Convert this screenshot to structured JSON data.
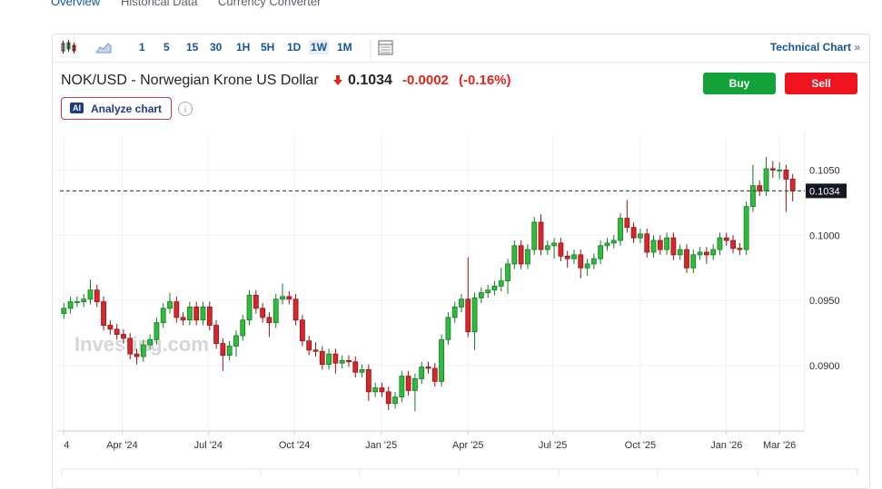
{
  "tabs": [
    "Overview",
    "Historical Data",
    "Currency Converter"
  ],
  "toolbar": {
    "intervals": [
      "1",
      "5",
      "15",
      "30",
      "1H",
      "5H",
      "1D",
      "1W",
      "1M"
    ],
    "selected": "1W",
    "technical_chart": "Technical Chart"
  },
  "quote": {
    "name": "NOK/USD - Norwegian Krone US Dollar",
    "price": "0.1034",
    "change": "-0.0002",
    "change_percent": "(-0.16%)",
    "buy": "Buy",
    "sell": "Sell"
  },
  "analyze": {
    "badge": "AI",
    "label": "Analyze chart"
  },
  "watermark": "Investing.com",
  "chart_data": {
    "type": "candlestick",
    "up_color": "#2ebd3a",
    "down_color": "#d9262b",
    "xlim": [
      -1,
      111
    ],
    "ylim": [
      0.085,
      0.1076
    ],
    "xticks": [
      {
        "value": 0,
        "label": "4"
      },
      {
        "value": 8.8,
        "label": "Apr '24"
      },
      {
        "value": 21.8,
        "label": "Jul '24"
      },
      {
        "value": 34.8,
        "label": "Oct '24"
      },
      {
        "value": 47.9,
        "label": "Jan '25"
      },
      {
        "value": 61,
        "label": "Apr '25"
      },
      {
        "value": 73.8,
        "label": "Jul '25"
      },
      {
        "value": 87,
        "label": "Oct '25"
      },
      {
        "value": 100,
        "label": "Jan '26"
      },
      {
        "value": 108,
        "label": "Mar '26"
      }
    ],
    "yticks": [
      {
        "value": 0.09,
        "label": "0.0900"
      },
      {
        "value": 0.095,
        "label": "0.0950"
      },
      {
        "value": 0.1,
        "label": "0.1000"
      },
      {
        "value": 0.105,
        "label": "0.1050"
      }
    ],
    "grid": true,
    "last_price": 0.1034,
    "ohlc": [
      [
        0.094,
        0.0948,
        0.0936,
        0.0944
      ],
      [
        0.0944,
        0.0953,
        0.094,
        0.0949
      ],
      [
        0.0949,
        0.0953,
        0.0945,
        0.0949
      ],
      [
        0.0949,
        0.0955,
        0.0945,
        0.0951
      ],
      [
        0.0951,
        0.0966,
        0.0947,
        0.0958
      ],
      [
        0.0958,
        0.0962,
        0.0945,
        0.0949
      ],
      [
        0.0949,
        0.0953,
        0.0927,
        0.0931
      ],
      [
        0.0931,
        0.0935,
        0.0924,
        0.0928
      ],
      [
        0.0928,
        0.0932,
        0.092,
        0.0924
      ],
      [
        0.0924,
        0.0928,
        0.0917,
        0.0921
      ],
      [
        0.0921,
        0.0925,
        0.0905,
        0.0909
      ],
      [
        0.0909,
        0.0913,
        0.0901,
        0.0907
      ],
      [
        0.0907,
        0.092,
        0.0903,
        0.0916
      ],
      [
        0.0916,
        0.0924,
        0.0912,
        0.092
      ],
      [
        0.092,
        0.0937,
        0.0916,
        0.0933
      ],
      [
        0.0933,
        0.0948,
        0.0929,
        0.0944
      ],
      [
        0.0944,
        0.0956,
        0.094,
        0.0949
      ],
      [
        0.0949,
        0.0953,
        0.0933,
        0.0937
      ],
      [
        0.0937,
        0.0941,
        0.0931,
        0.0935
      ],
      [
        0.0935,
        0.0949,
        0.0931,
        0.0945
      ],
      [
        0.0945,
        0.0949,
        0.0931,
        0.0935
      ],
      [
        0.0935,
        0.0949,
        0.0931,
        0.0945
      ],
      [
        0.0945,
        0.0949,
        0.0927,
        0.0931
      ],
      [
        0.0931,
        0.0935,
        0.0913,
        0.0917
      ],
      [
        0.0917,
        0.0921,
        0.0896,
        0.0908
      ],
      [
        0.0908,
        0.0919,
        0.0904,
        0.0915
      ],
      [
        0.0915,
        0.0927,
        0.0907,
        0.0923
      ],
      [
        0.0923,
        0.0939,
        0.0919,
        0.0935
      ],
      [
        0.0935,
        0.0958,
        0.0931,
        0.0954
      ],
      [
        0.0954,
        0.0958,
        0.094,
        0.0944
      ],
      [
        0.0944,
        0.0948,
        0.0933,
        0.0937
      ],
      [
        0.0937,
        0.0941,
        0.0922,
        0.0933
      ],
      [
        0.0933,
        0.0955,
        0.0929,
        0.0951
      ],
      [
        0.0951,
        0.0963,
        0.0947,
        0.0953
      ],
      [
        0.0953,
        0.0957,
        0.0947,
        0.0951
      ],
      [
        0.0951,
        0.0955,
        0.0931,
        0.0935
      ],
      [
        0.0935,
        0.0939,
        0.0915,
        0.0919
      ],
      [
        0.0919,
        0.0923,
        0.0908,
        0.0912
      ],
      [
        0.0912,
        0.0918,
        0.0907,
        0.0911
      ],
      [
        0.0911,
        0.0915,
        0.0897,
        0.0901
      ],
      [
        0.0901,
        0.0913,
        0.0897,
        0.0909
      ],
      [
        0.0909,
        0.0913,
        0.0894,
        0.0902
      ],
      [
        0.0902,
        0.0908,
        0.0898,
        0.0904
      ],
      [
        0.0904,
        0.0908,
        0.0899,
        0.0903
      ],
      [
        0.0903,
        0.0907,
        0.0891,
        0.0895
      ],
      [
        0.0895,
        0.0901,
        0.0891,
        0.0897
      ],
      [
        0.0897,
        0.0901,
        0.0873,
        0.088
      ],
      [
        0.088,
        0.0887,
        0.0876,
        0.0883
      ],
      [
        0.0883,
        0.0887,
        0.0876,
        0.088
      ],
      [
        0.088,
        0.0884,
        0.0866,
        0.0871
      ],
      [
        0.0871,
        0.088,
        0.0867,
        0.0876
      ],
      [
        0.0876,
        0.0896,
        0.0872,
        0.0892
      ],
      [
        0.0892,
        0.0896,
        0.0877,
        0.0881
      ],
      [
        0.0881,
        0.0894,
        0.0865,
        0.089
      ],
      [
        0.089,
        0.0903,
        0.0886,
        0.0899
      ],
      [
        0.0899,
        0.0903,
        0.0894,
        0.0898
      ],
      [
        0.0898,
        0.0902,
        0.0884,
        0.0888
      ],
      [
        0.0888,
        0.0924,
        0.0884,
        0.092
      ],
      [
        0.092,
        0.0941,
        0.0916,
        0.0937
      ],
      [
        0.0937,
        0.0949,
        0.0933,
        0.0945
      ],
      [
        0.0945,
        0.0955,
        0.0941,
        0.0951
      ],
      [
        0.0951,
        0.0983,
        0.0922,
        0.0926
      ],
      [
        0.0926,
        0.0956,
        0.0912,
        0.0952
      ],
      [
        0.0952,
        0.096,
        0.0948,
        0.0956
      ],
      [
        0.0956,
        0.0962,
        0.0952,
        0.0958
      ],
      [
        0.0958,
        0.0965,
        0.0954,
        0.0961
      ],
      [
        0.0961,
        0.0975,
        0.0957,
        0.0965
      ],
      [
        0.0965,
        0.0982,
        0.0955,
        0.0978
      ],
      [
        0.0978,
        0.0996,
        0.0974,
        0.0992
      ],
      [
        0.0992,
        0.0996,
        0.0974,
        0.0978
      ],
      [
        0.0978,
        0.0993,
        0.0974,
        0.0989
      ],
      [
        0.0989,
        0.1014,
        0.0985,
        0.101
      ],
      [
        0.101,
        0.1016,
        0.0985,
        0.0989
      ],
      [
        0.0989,
        0.0996,
        0.0985,
        0.0992
      ],
      [
        0.0992,
        0.0998,
        0.0982,
        0.0994
      ],
      [
        0.0994,
        0.0998,
        0.098,
        0.0984
      ],
      [
        0.0984,
        0.0988,
        0.0975,
        0.0982
      ],
      [
        0.0982,
        0.0989,
        0.0978,
        0.0985
      ],
      [
        0.0985,
        0.0989,
        0.0967,
        0.0975
      ],
      [
        0.0975,
        0.0982,
        0.0969,
        0.0978
      ],
      [
        0.0978,
        0.0986,
        0.0974,
        0.0982
      ],
      [
        0.0982,
        0.0996,
        0.0978,
        0.0992
      ],
      [
        0.0992,
        0.0998,
        0.0988,
        0.0994
      ],
      [
        0.0994,
        0.1,
        0.099,
        0.0996
      ],
      [
        0.0996,
        0.1017,
        0.0992,
        0.1013
      ],
      [
        0.1013,
        0.1027,
        0.1002,
        0.1006
      ],
      [
        0.1006,
        0.101,
        0.0994,
        0.0998
      ],
      [
        0.0998,
        0.1005,
        0.0994,
        0.1001
      ],
      [
        0.1001,
        0.1005,
        0.0983,
        0.0987
      ],
      [
        0.0987,
        0.1,
        0.0983,
        0.0996
      ],
      [
        0.0996,
        0.1,
        0.0985,
        0.0989
      ],
      [
        0.0989,
        0.1002,
        0.0985,
        0.0998
      ],
      [
        0.0998,
        0.1002,
        0.0981,
        0.0985
      ],
      [
        0.0985,
        0.0993,
        0.0981,
        0.0989
      ],
      [
        0.0989,
        0.0993,
        0.0971,
        0.0975
      ],
      [
        0.0975,
        0.0989,
        0.0971,
        0.0985
      ],
      [
        0.0985,
        0.0991,
        0.0981,
        0.0987
      ],
      [
        0.0987,
        0.0991,
        0.0978,
        0.0985
      ],
      [
        0.0985,
        0.0993,
        0.0981,
        0.0989
      ],
      [
        0.0989,
        0.1002,
        0.0985,
        0.0998
      ],
      [
        0.0998,
        0.1002,
        0.0992,
        0.0996
      ],
      [
        0.0996,
        0.1,
        0.0986,
        0.099
      ],
      [
        0.099,
        0.0994,
        0.0985,
        0.0989
      ],
      [
        0.0989,
        0.1026,
        0.0985,
        0.1022
      ],
      [
        0.1022,
        0.1054,
        0.1018,
        0.1038
      ],
      [
        0.1038,
        0.1042,
        0.103,
        0.1034
      ],
      [
        0.1034,
        0.106,
        0.103,
        0.1051
      ],
      [
        0.1051,
        0.1057,
        0.1044,
        0.105
      ],
      [
        0.105,
        0.1056,
        0.1043,
        0.105
      ],
      [
        0.105,
        0.1054,
        0.1018,
        0.1043
      ],
      [
        0.1043,
        0.1047,
        0.1026,
        0.1034
      ]
    ]
  }
}
